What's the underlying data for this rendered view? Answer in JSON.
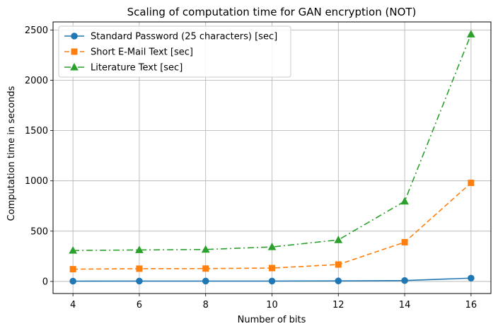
{
  "chart_data": {
    "type": "line",
    "title": "Scaling of computation time for GAN encryption (NOT)",
    "xlabel": "Number of bits",
    "ylabel": "Computation time in seconds",
    "x": [
      4,
      6,
      8,
      10,
      12,
      14,
      16
    ],
    "xlim": [
      3.4,
      16.6
    ],
    "ylim": [
      -120,
      2580
    ],
    "xticks": [
      4,
      6,
      8,
      10,
      12,
      14,
      16
    ],
    "yticks": [
      0,
      500,
      1000,
      1500,
      2000,
      2500
    ],
    "grid": true,
    "legend_position": "top-left",
    "series": [
      {
        "name": "Standard Password (25 characters) [sec]",
        "values": [
          3,
          4,
          4,
          4,
          5,
          9,
          33
        ],
        "color": "#1f77b4",
        "marker": "circle",
        "linestyle": "solid"
      },
      {
        "name": "Short E-Mail Text [sec]",
        "values": [
          122,
          127,
          128,
          133,
          168,
          390,
          980
        ],
        "color": "#ff7f0e",
        "marker": "square",
        "linestyle": "dashed"
      },
      {
        "name": "Literature Text [sec]",
        "values": [
          308,
          313,
          318,
          343,
          413,
          797,
          2458
        ],
        "color": "#2ca02c",
        "marker": "triangle",
        "linestyle": "dashdot"
      }
    ]
  }
}
